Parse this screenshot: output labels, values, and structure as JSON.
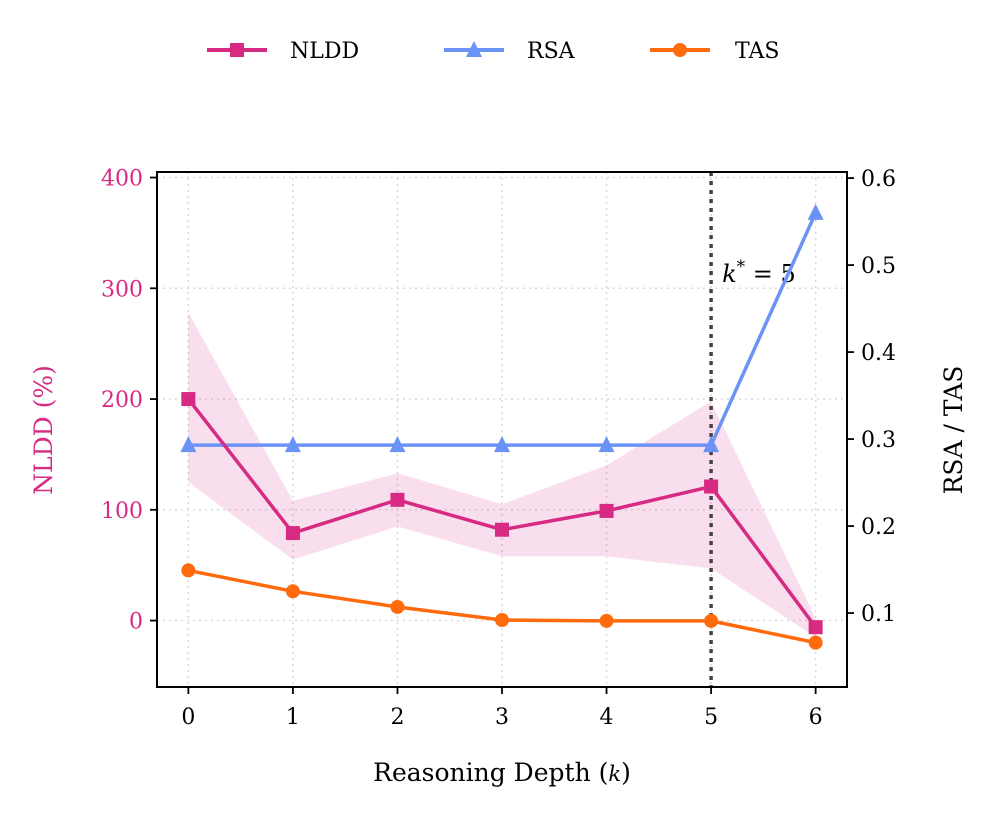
{
  "chart_data": {
    "type": "line",
    "x": [
      0,
      1,
      2,
      3,
      4,
      5,
      6
    ],
    "xlabel_prefix": "Reasoning Depth (",
    "xlabel_var": "k",
    "xlabel_suffix": ")",
    "ylabel_left": "NLDD (%)",
    "ylabel_right": "RSA / TAS",
    "ylim_left": [
      -60,
      405
    ],
    "ylim_right": [
      0.015,
      0.607
    ],
    "xlim": [
      -0.3,
      6.3
    ],
    "yticks_left": [
      0,
      100,
      200,
      300,
      400
    ],
    "yticks_right": [
      0.1,
      0.2,
      0.3,
      0.4,
      0.5,
      0.6
    ],
    "xticks": [
      0,
      1,
      2,
      3,
      4,
      5,
      6
    ],
    "grid": true,
    "legend_position": "top-center",
    "series": [
      {
        "name": "NLDD",
        "axis": "left",
        "color": "#d62a83",
        "marker": "square",
        "values": [
          200,
          79,
          109,
          82,
          99,
          121,
          -6
        ],
        "band_low": [
          125,
          55,
          85,
          58,
          58,
          47,
          -15
        ],
        "band_high": [
          278,
          108,
          133,
          105,
          140,
          198,
          2
        ]
      },
      {
        "name": "RSA",
        "axis": "right",
        "color": "#6b93f5",
        "marker": "triangle",
        "values": [
          0.293,
          0.293,
          0.293,
          0.293,
          0.293,
          0.293,
          0.56
        ]
      },
      {
        "name": "TAS",
        "axis": "right",
        "color": "#ff6a0d",
        "marker": "circle",
        "values": [
          0.149,
          0.125,
          0.107,
          0.092,
          0.091,
          0.091,
          0.066
        ]
      }
    ],
    "annotation": {
      "x": 5,
      "label_var": "k",
      "label_sup": "*",
      "label_rest": " = 5",
      "color": "#444444"
    }
  }
}
